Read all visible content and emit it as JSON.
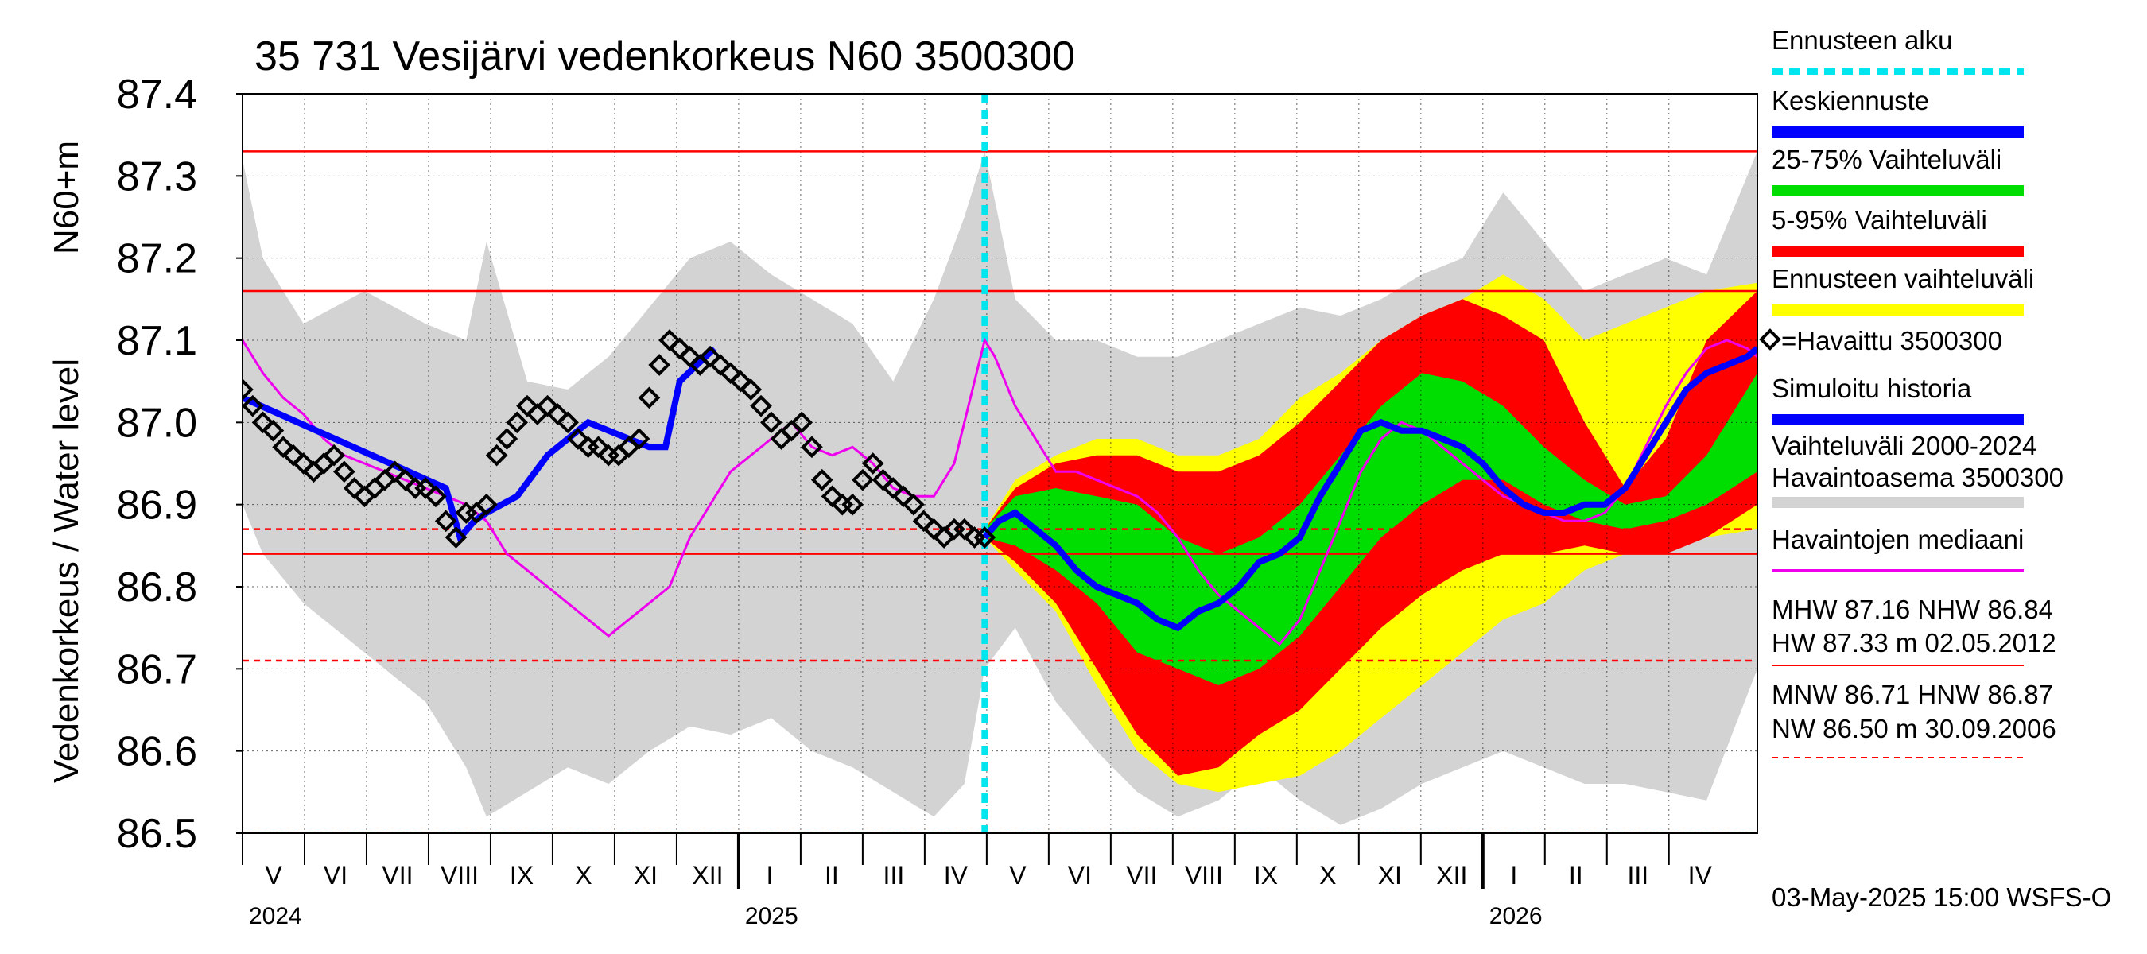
{
  "chart_data": {
    "type": "line",
    "title": "35 731 Vesijärvi vedenkorkeus N60 3500300",
    "ylabel_top": "N60+m",
    "ylabel": "Vedenkorkeus / Water level",
    "ylim": [
      86.5,
      87.4
    ],
    "yticks": [
      "87.4",
      "87.3",
      "87.2",
      "87.1",
      "87.0",
      "86.9",
      "86.8",
      "86.7",
      "86.6",
      "86.5"
    ],
    "x_range_days": [
      0,
      745
    ],
    "months": [
      "V",
      "VI",
      "VII",
      "VIII",
      "IX",
      "X",
      "XI",
      "XII",
      "I",
      "II",
      "III",
      "IV",
      "V",
      "VI",
      "VII",
      "VIII",
      "IX",
      "X",
      "XI",
      "XII",
      "I",
      "II",
      "III",
      "IV"
    ],
    "years": [
      "2024",
      "2025",
      "2026"
    ],
    "forecast_start_day": 365,
    "reference_lines": [
      {
        "name": "HW",
        "value": 87.33,
        "style": "solid",
        "color": "#ff0000"
      },
      {
        "name": "MHW",
        "value": 87.16,
        "style": "solid",
        "color": "#ff0000"
      },
      {
        "name": "HNW",
        "value": 86.87,
        "style": "dashed",
        "color": "#ff0000"
      },
      {
        "name": "NHW",
        "value": 86.84,
        "style": "solid",
        "color": "#ff0000"
      },
      {
        "name": "MNW",
        "value": 86.71,
        "style": "dashed",
        "color": "#ff0000"
      },
      {
        "name": "NW",
        "value": 86.5,
        "style": "dashed",
        "color": "#ff0000"
      }
    ],
    "history_band": {
      "name": "Vaihteluväli 2000-2024 Havaintoasema 3500300",
      "color": "#d3d3d3",
      "x": [
        0,
        10,
        30,
        60,
        90,
        110,
        120,
        140,
        160,
        180,
        200,
        220,
        240,
        260,
        280,
        300,
        320,
        340,
        355,
        365,
        380,
        400,
        420,
        440,
        460,
        480,
        500,
        520,
        540,
        560,
        580,
        600,
        620,
        640,
        660,
        680,
        700,
        720,
        745
      ],
      "upper": [
        87.32,
        87.2,
        87.12,
        87.16,
        87.12,
        87.1,
        87.22,
        87.05,
        87.04,
        87.08,
        87.14,
        87.2,
        87.22,
        87.18,
        87.15,
        87.12,
        87.05,
        87.15,
        87.25,
        87.33,
        87.15,
        87.1,
        87.1,
        87.08,
        87.08,
        87.1,
        87.12,
        87.14,
        87.13,
        87.15,
        87.18,
        87.2,
        87.28,
        87.22,
        87.16,
        87.18,
        87.2,
        87.18,
        87.33
      ],
      "lower": [
        86.9,
        86.84,
        86.78,
        86.72,
        86.66,
        86.58,
        86.52,
        86.55,
        86.58,
        86.56,
        86.6,
        86.63,
        86.62,
        86.64,
        86.6,
        86.58,
        86.55,
        86.52,
        86.56,
        86.7,
        86.75,
        86.66,
        86.6,
        86.55,
        86.52,
        86.54,
        86.58,
        86.54,
        86.51,
        86.53,
        86.56,
        86.58,
        86.6,
        86.58,
        86.56,
        86.56,
        86.55,
        86.54,
        86.7
      ]
    },
    "forecast_bands": {
      "x": [
        365,
        380,
        400,
        420,
        440,
        460,
        480,
        500,
        520,
        540,
        560,
        580,
        600,
        620,
        640,
        660,
        680,
        700,
        720,
        745
      ],
      "ennuste": {
        "name": "Ennusteen vaihteluväli",
        "color": "#ffff00",
        "upper": [
          86.87,
          86.93,
          86.96,
          86.98,
          86.98,
          86.96,
          86.96,
          86.98,
          87.03,
          87.06,
          87.1,
          87.13,
          87.15,
          87.18,
          87.15,
          87.1,
          87.12,
          87.14,
          87.16,
          87.17
        ],
        "lower": [
          86.86,
          86.82,
          86.77,
          86.68,
          86.6,
          86.56,
          86.55,
          86.56,
          86.57,
          86.6,
          86.64,
          86.68,
          86.72,
          86.76,
          86.78,
          86.82,
          86.84,
          86.85,
          86.86,
          86.87
        ]
      },
      "p5_95": {
        "name": "5-95% Vaihteluväli",
        "color": "#ff0000",
        "upper": [
          86.87,
          86.92,
          86.95,
          86.96,
          86.96,
          86.94,
          86.94,
          86.96,
          87.0,
          87.05,
          87.1,
          87.13,
          87.15,
          87.13,
          87.1,
          87.0,
          86.92,
          86.98,
          87.1,
          87.16
        ],
        "lower": [
          86.86,
          86.83,
          86.78,
          86.7,
          86.62,
          86.57,
          86.58,
          86.62,
          86.65,
          86.7,
          86.75,
          86.79,
          86.82,
          86.84,
          86.84,
          86.85,
          86.84,
          86.84,
          86.86,
          86.9
        ]
      },
      "p25_75": {
        "name": "25-75% Vaihteluväli",
        "color": "#00dd00",
        "upper": [
          86.87,
          86.91,
          86.92,
          86.91,
          86.9,
          86.86,
          86.84,
          86.86,
          86.9,
          86.96,
          87.02,
          87.06,
          87.05,
          87.02,
          86.97,
          86.93,
          86.9,
          86.91,
          86.96,
          87.06
        ],
        "lower": [
          86.86,
          86.85,
          86.82,
          86.78,
          86.72,
          86.7,
          86.68,
          86.7,
          86.74,
          86.8,
          86.86,
          86.9,
          86.93,
          86.93,
          86.9,
          86.88,
          86.87,
          86.88,
          86.9,
          86.94
        ]
      }
    },
    "series": [
      {
        "name": "Keskiennuste",
        "color": "#0000ff",
        "x": [
          365,
          372,
          380,
          390,
          400,
          410,
          420,
          430,
          440,
          450,
          460,
          470,
          480,
          490,
          500,
          510,
          520,
          530,
          540,
          550,
          560,
          570,
          580,
          590,
          600,
          610,
          620,
          630,
          640,
          650,
          660,
          670,
          680,
          690,
          700,
          710,
          720,
          730,
          740,
          745
        ],
        "y": [
          86.86,
          86.88,
          86.89,
          86.87,
          86.85,
          86.82,
          86.8,
          86.79,
          86.78,
          86.76,
          86.75,
          86.77,
          86.78,
          86.8,
          86.83,
          86.84,
          86.86,
          86.91,
          86.95,
          86.99,
          87.0,
          86.99,
          86.99,
          86.98,
          86.97,
          86.95,
          86.92,
          86.9,
          86.89,
          86.89,
          86.9,
          86.9,
          86.92,
          86.96,
          87.0,
          87.04,
          87.06,
          87.07,
          87.08,
          87.09
        ]
      },
      {
        "name": "Simuloitu historia",
        "color": "#0000ff",
        "x": [
          0,
          100,
          107,
          114,
          120,
          135,
          150,
          170,
          200,
          208,
          215,
          232
        ],
        "y": [
          87.03,
          86.92,
          86.86,
          86.88,
          86.89,
          86.91,
          86.96,
          87.0,
          86.97,
          86.97,
          87.05,
          87.09
        ]
      },
      {
        "name": "Havaintojen mediaani",
        "color": "#ee00ee",
        "x": [
          0,
          10,
          20,
          30,
          40,
          50,
          60,
          70,
          80,
          90,
          100,
          110,
          120,
          130,
          140,
          150,
          160,
          170,
          180,
          190,
          200,
          210,
          220,
          230,
          240,
          250,
          260,
          270,
          280,
          290,
          300,
          310,
          320,
          330,
          340,
          350,
          360,
          365,
          370,
          380,
          390,
          400,
          410,
          420,
          430,
          440,
          450,
          460,
          470,
          480,
          490,
          500,
          510,
          520,
          530,
          540,
          550,
          560,
          570,
          580,
          590,
          600,
          610,
          620,
          630,
          640,
          650,
          660,
          670,
          680,
          690,
          700,
          710,
          720,
          730,
          740,
          745
        ],
        "y": [
          87.1,
          87.06,
          87.03,
          87.01,
          86.98,
          86.96,
          86.95,
          86.94,
          86.93,
          86.92,
          86.91,
          86.9,
          86.88,
          86.84,
          86.82,
          86.8,
          86.78,
          86.76,
          86.74,
          86.76,
          86.78,
          86.8,
          86.86,
          86.9,
          86.94,
          86.96,
          86.98,
          87.0,
          86.97,
          86.96,
          86.97,
          86.95,
          86.92,
          86.91,
          86.91,
          86.95,
          87.05,
          87.1,
          87.08,
          87.02,
          86.98,
          86.94,
          86.94,
          86.93,
          86.92,
          86.91,
          86.89,
          86.86,
          86.82,
          86.79,
          86.77,
          86.75,
          86.73,
          86.76,
          86.82,
          86.88,
          86.94,
          86.98,
          87.0,
          86.99,
          86.97,
          86.95,
          86.93,
          86.91,
          86.9,
          86.89,
          86.88,
          86.88,
          86.89,
          86.92,
          86.97,
          87.02,
          87.06,
          87.09,
          87.1,
          87.09,
          87.08
        ]
      },
      {
        "name": "Havaittu 3500300",
        "color": "#000000",
        "x": [
          0,
          5,
          10,
          15,
          20,
          25,
          30,
          35,
          40,
          45,
          50,
          55,
          60,
          65,
          70,
          75,
          80,
          85,
          90,
          95,
          100,
          105,
          110,
          115,
          120,
          125,
          130,
          135,
          140,
          145,
          150,
          155,
          160,
          165,
          170,
          175,
          180,
          185,
          190,
          195,
          200,
          205,
          210,
          215,
          220,
          225,
          230,
          235,
          240,
          245,
          250,
          255,
          260,
          265,
          270,
          275,
          280,
          285,
          290,
          295,
          300,
          305,
          310,
          315,
          320,
          325,
          330,
          335,
          340,
          345,
          350,
          355,
          360,
          365
        ],
        "y": [
          87.04,
          87.02,
          87.0,
          86.99,
          86.97,
          86.96,
          86.95,
          86.94,
          86.95,
          86.96,
          86.94,
          86.92,
          86.91,
          86.92,
          86.93,
          86.94,
          86.93,
          86.92,
          86.92,
          86.91,
          86.88,
          86.86,
          86.89,
          86.89,
          86.9,
          86.96,
          86.98,
          87.0,
          87.02,
          87.01,
          87.02,
          87.01,
          87.0,
          86.98,
          86.97,
          86.97,
          86.96,
          86.96,
          86.97,
          86.98,
          87.03,
          87.07,
          87.1,
          87.09,
          87.08,
          87.07,
          87.08,
          87.07,
          87.06,
          87.05,
          87.04,
          87.02,
          87.0,
          86.98,
          86.99,
          87.0,
          86.97,
          86.93,
          86.91,
          86.9,
          86.9,
          86.93,
          86.95,
          86.93,
          86.92,
          86.91,
          86.9,
          86.88,
          86.87,
          86.86,
          86.87,
          86.87,
          86.86,
          86.86
        ]
      }
    ],
    "legend": {
      "placement": "right",
      "items": [
        {
          "label": "Ennusteen alku",
          "color": "#00e5ee",
          "kind": "dashed"
        },
        {
          "label": "Keskiennuste",
          "color": "#0000ff",
          "kind": "line"
        },
        {
          "label": "25-75% Vaihteluväli",
          "color": "#00dd00",
          "kind": "line"
        },
        {
          "label": "5-95% Vaihteluväli",
          "color": "#ff0000",
          "kind": "line"
        },
        {
          "label": "Ennusteen vaihteluväli",
          "color": "#ffff00",
          "kind": "line"
        },
        {
          "label": "=Havaittu 3500300",
          "color": "#000000",
          "kind": "marker"
        },
        {
          "label": "Simuloitu historia",
          "color": "#0000ff",
          "kind": "line"
        },
        {
          "label": "Vaihteluväli 2000-2024",
          "label2": " Havaintoasema 3500300",
          "color": "#d3d3d3",
          "kind": "line"
        },
        {
          "label": "Havaintojen mediaani",
          "color": "#ee00ee",
          "kind": "thin"
        }
      ]
    },
    "stats": {
      "line1": "MHW  87.16 NHW  86.84",
      "line2": "HW  87.33 m 02.05.2012",
      "line3": "MNW  86.71 HNW  86.87",
      "line4": "NW  86.50 m 30.09.2006"
    },
    "footer": "03-May-2025 15:00 WSFS-O"
  }
}
